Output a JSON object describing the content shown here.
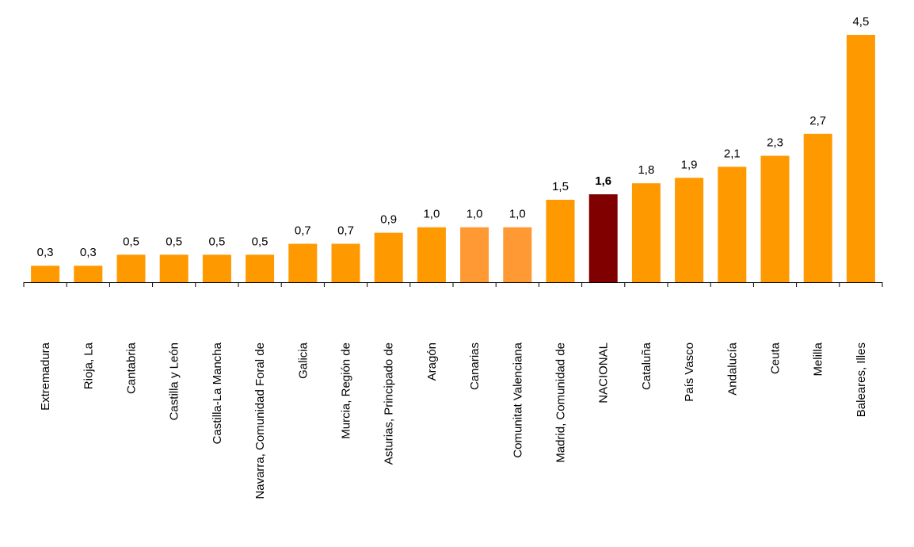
{
  "chart_data": {
    "type": "bar",
    "title": "",
    "xlabel": "",
    "ylabel": "",
    "ylim": [
      0,
      4.5
    ],
    "grid": false,
    "legend": "none",
    "categories": [
      "Extremadura",
      "Rioja, La",
      "Cantabria",
      "Castilla y León",
      "Castilla-La Mancha",
      "Navarra, Comunidad Foral de",
      "Galicia",
      "Murcia, Región de",
      "Asturias, Principado de",
      "Aragón",
      "Canarias",
      "Comunitat Valenciana",
      "Madrid, Comunidad de",
      "NACIONAL",
      "Cataluña",
      "País Vasco",
      "Andalucía",
      "Ceuta",
      "Melilla",
      "Baleares, Illes"
    ],
    "values": [
      0.3,
      0.3,
      0.5,
      0.5,
      0.5,
      0.5,
      0.7,
      0.7,
      0.9,
      1.0,
      1.0,
      1.0,
      1.5,
      1.6,
      1.8,
      1.9,
      2.1,
      2.3,
      2.7,
      4.5
    ],
    "value_labels": [
      "0,3",
      "0,3",
      "0,5",
      "0,5",
      "0,5",
      "0,5",
      "0,7",
      "0,7",
      "0,9",
      "1,0",
      "1,0",
      "1,0",
      "1,5",
      "1,6",
      "1,8",
      "1,9",
      "2,1",
      "2,3",
      "2,7",
      "4,5"
    ],
    "colors": {
      "default": "#ff9900",
      "light": "#ff9933",
      "highlight": "#800000",
      "axis": "#000000"
    },
    "color_keys": [
      "default",
      "default",
      "default",
      "default",
      "default",
      "default",
      "default",
      "default",
      "default",
      "default",
      "light",
      "light",
      "default",
      "highlight",
      "default",
      "default",
      "default",
      "default",
      "default",
      "default"
    ],
    "highlight_index": 13
  }
}
